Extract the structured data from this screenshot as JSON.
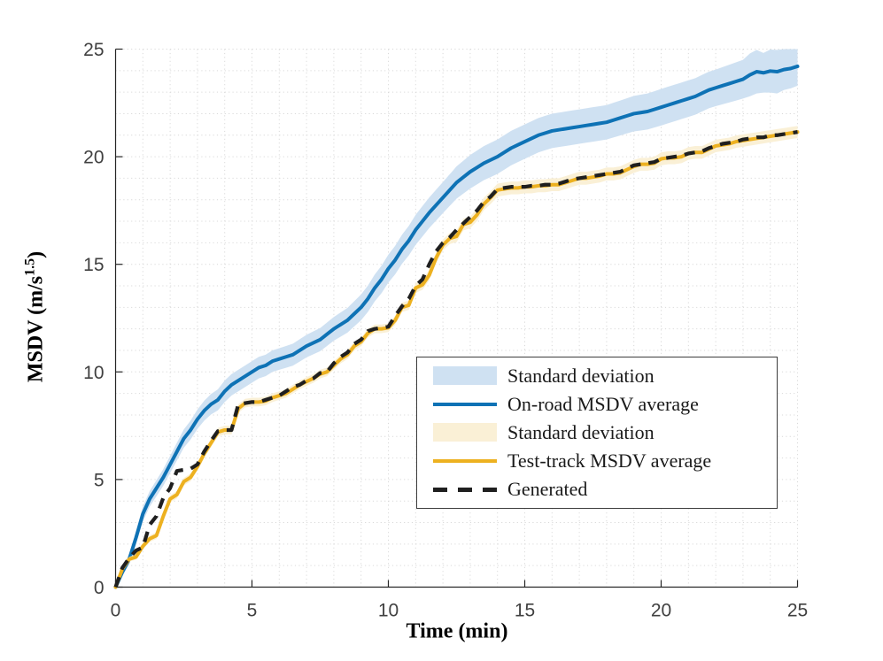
{
  "axes": {
    "xlabel": "Time (min)",
    "ylabel_prefix": "MSDV (m/s",
    "ylabel_sup": "1.5",
    "ylabel_suffix": ")",
    "xticks": [
      0,
      5,
      10,
      15,
      20,
      25
    ],
    "yticks": [
      0,
      5,
      10,
      15,
      20,
      25
    ],
    "axis_color": "#262626",
    "tick_label_color": "#404040",
    "grid_color": "#d9d9d9",
    "grid_step": 1
  },
  "legend": {
    "items": [
      {
        "label": "Standard deviation",
        "type": "patch",
        "color": "#cfe1f2"
      },
      {
        "label": "On-road MSDV average",
        "type": "line",
        "color": "#0e72b5"
      },
      {
        "label": "Standard deviation",
        "type": "patch",
        "color": "#faf0d6"
      },
      {
        "label": "Test-track MSDV average",
        "type": "line",
        "color": "#edb120"
      },
      {
        "label": "Generated",
        "type": "dash",
        "color": "#1f1f1f"
      }
    ]
  },
  "chart_data": {
    "type": "line",
    "xlim": [
      0,
      25
    ],
    "ylim": [
      0,
      25
    ],
    "x_start": 0,
    "x_step": 0.25,
    "grid": "on",
    "legend_position": "inside-right",
    "series": [
      {
        "name": "On-road MSDV average",
        "color": "#0e72b5",
        "style": "solid",
        "width": 4,
        "band_label": "Standard deviation",
        "band_color": "#cfe1f2",
        "band_sd": [
          [
            0,
            0.08
          ],
          [
            0.5,
            0.25
          ],
          [
            1,
            0.35
          ],
          [
            2,
            0.4
          ],
          [
            3,
            0.45
          ],
          [
            4,
            0.5
          ],
          [
            6,
            0.5
          ],
          [
            8,
            0.55
          ],
          [
            9,
            0.6
          ],
          [
            10,
            0.65
          ],
          [
            11,
            0.7
          ],
          [
            12,
            0.72
          ],
          [
            13,
            0.78
          ],
          [
            14,
            0.8
          ],
          [
            18,
            0.8
          ],
          [
            20,
            0.85
          ],
          [
            22,
            0.85
          ],
          [
            23,
            0.9
          ],
          [
            23.4,
            1.05
          ],
          [
            23.8,
            0.9
          ],
          [
            24.1,
            1.05
          ],
          [
            24.5,
            0.95
          ],
          [
            25,
            0.9
          ]
        ],
        "values": [
          0,
          0.7,
          1.3,
          2.3,
          3.4,
          4.1,
          4.6,
          5.1,
          5.7,
          6.3,
          6.9,
          7.3,
          7.8,
          8.2,
          8.5,
          8.7,
          9.1,
          9.4,
          9.6,
          9.8,
          10.0,
          10.2,
          10.3,
          10.5,
          10.6,
          10.7,
          10.8,
          11.0,
          11.2,
          11.35,
          11.5,
          11.75,
          12.0,
          12.2,
          12.4,
          12.7,
          13.0,
          13.4,
          13.9,
          14.3,
          14.8,
          15.2,
          15.7,
          16.1,
          16.6,
          17.0,
          17.4,
          17.75,
          18.1,
          18.45,
          18.8,
          19.05,
          19.3,
          19.5,
          19.7,
          19.85,
          20.0,
          20.2,
          20.4,
          20.55,
          20.7,
          20.85,
          21.0,
          21.1,
          21.2,
          21.25,
          21.3,
          21.35,
          21.4,
          21.45,
          21.5,
          21.55,
          21.6,
          21.7,
          21.8,
          21.9,
          22.0,
          22.05,
          22.1,
          22.2,
          22.3,
          22.4,
          22.5,
          22.6,
          22.7,
          22.8,
          22.95,
          23.1,
          23.2,
          23.3,
          23.4,
          23.5,
          23.6,
          23.8,
          23.95,
          23.9,
          23.98,
          23.95,
          24.05,
          24.1,
          24.2
        ]
      },
      {
        "name": "Test-track MSDV average",
        "color": "#edb120",
        "style": "solid",
        "width": 4,
        "band_label": "Standard deviation",
        "band_color": "#faf0d6",
        "band_sd": [
          [
            0,
            0.06
          ],
          [
            1,
            0.15
          ],
          [
            4,
            0.2
          ],
          [
            10,
            0.2
          ],
          [
            13,
            0.28
          ],
          [
            14,
            0.3
          ],
          [
            20,
            0.3
          ],
          [
            25,
            0.28
          ]
        ],
        "values": [
          0,
          0.85,
          1.3,
          1.4,
          1.9,
          2.25,
          2.4,
          3.3,
          4.1,
          4.3,
          4.9,
          5.1,
          5.6,
          6.2,
          6.7,
          7.2,
          7.3,
          7.3,
          8.3,
          8.55,
          8.6,
          8.6,
          8.65,
          8.8,
          8.9,
          9.0,
          9.2,
          9.4,
          9.55,
          9.7,
          9.9,
          10.0,
          10.3,
          10.6,
          10.8,
          11.2,
          11.4,
          11.8,
          12.0,
          12.0,
          12.05,
          12.4,
          13.0,
          13.1,
          13.9,
          14.05,
          14.5,
          15.3,
          15.9,
          16.2,
          16.3,
          16.85,
          16.95,
          17.3,
          17.8,
          18.1,
          18.45,
          18.5,
          18.55,
          18.55,
          18.6,
          18.6,
          18.65,
          18.65,
          18.7,
          18.7,
          18.8,
          18.9,
          19.0,
          19.0,
          19.05,
          19.1,
          19.2,
          19.2,
          19.25,
          19.4,
          19.55,
          19.65,
          19.65,
          19.7,
          19.9,
          19.95,
          19.95,
          20.0,
          20.15,
          20.2,
          20.2,
          20.35,
          20.5,
          20.55,
          20.6,
          20.7,
          20.75,
          20.8,
          20.85,
          20.9,
          20.95,
          21.0,
          21.05,
          21.1,
          21.15
        ]
      },
      {
        "name": "Generated",
        "color": "#1f1f1f",
        "style": "dashed",
        "width": 4.2,
        "values": [
          0,
          0.9,
          1.35,
          1.7,
          1.85,
          2.9,
          3.3,
          4.15,
          4.6,
          5.4,
          5.45,
          5.5,
          5.7,
          6.3,
          6.8,
          7.25,
          7.3,
          7.3,
          8.5,
          8.55,
          8.6,
          8.6,
          8.7,
          8.8,
          8.9,
          9.1,
          9.3,
          9.4,
          9.6,
          9.7,
          9.95,
          10.0,
          10.4,
          10.7,
          10.9,
          11.3,
          11.5,
          11.9,
          12.0,
          12.05,
          12.1,
          12.6,
          13.05,
          13.4,
          14.0,
          14.3,
          15.0,
          15.6,
          16.0,
          16.25,
          16.6,
          16.9,
          17.2,
          17.5,
          17.9,
          18.15,
          18.5,
          18.55,
          18.6,
          18.6,
          18.6,
          18.65,
          18.65,
          18.7,
          18.7,
          18.75,
          18.85,
          18.95,
          19.0,
          19.05,
          19.1,
          19.15,
          19.2,
          19.25,
          19.3,
          19.45,
          19.6,
          19.65,
          19.7,
          19.75,
          19.9,
          19.95,
          20.0,
          20.05,
          20.15,
          20.2,
          20.25,
          20.4,
          20.5,
          20.6,
          20.65,
          20.7,
          20.8,
          20.85,
          20.9,
          20.9,
          21.0,
          21.0,
          21.05,
          21.1,
          21.15
        ]
      }
    ]
  }
}
